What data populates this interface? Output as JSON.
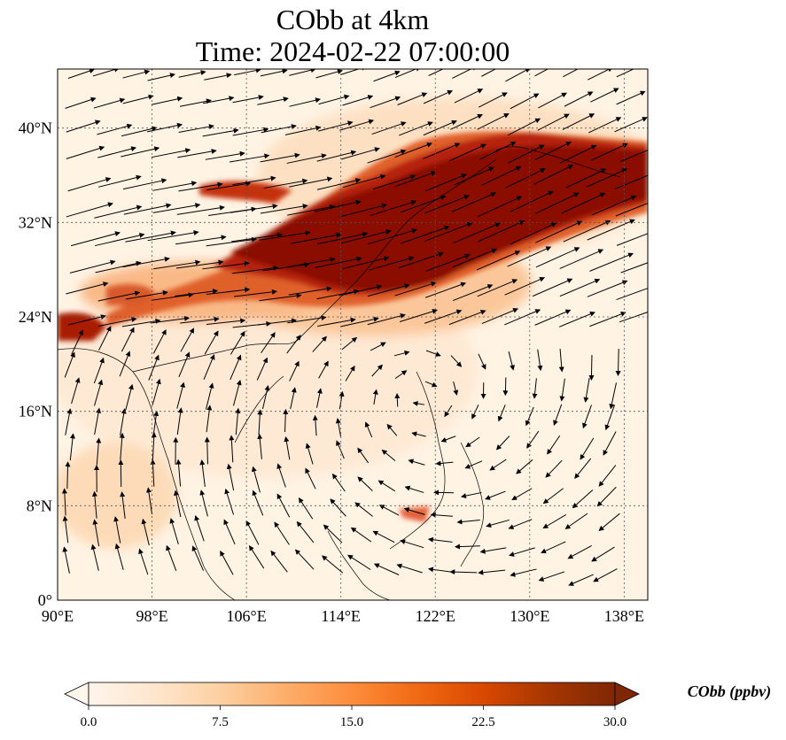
{
  "title": {
    "line1": "CObb at 4km",
    "line2": "Time: 2024-02-22 07:00:00"
  },
  "map": {
    "lon_range": [
      90,
      140
    ],
    "lat_range": [
      0,
      45
    ],
    "lon_ticks": [
      {
        "value": 90,
        "label": "90°E"
      },
      {
        "value": 98,
        "label": "98°E"
      },
      {
        "value": 106,
        "label": "106°E"
      },
      {
        "value": 114,
        "label": "114°E"
      },
      {
        "value": 122,
        "label": "122°E"
      },
      {
        "value": 130,
        "label": "130°E"
      },
      {
        "value": 138,
        "label": "138°E"
      }
    ],
    "lat_ticks": [
      {
        "value": 0,
        "label": "0°"
      },
      {
        "value": 8,
        "label": "8°N"
      },
      {
        "value": 16,
        "label": "16°N"
      },
      {
        "value": 24,
        "label": "24°N"
      },
      {
        "value": 32,
        "label": "32°N"
      },
      {
        "value": 40,
        "label": "40°N"
      }
    ],
    "gridlines": true
  },
  "colorbar": {
    "label": "CObb (ppbv)",
    "min": 0,
    "max": 30,
    "extend": "both",
    "ticks": [
      {
        "value": 0,
        "label": "0.0"
      },
      {
        "value": 7.5,
        "label": "7.5"
      },
      {
        "value": 15,
        "label": "15.0"
      },
      {
        "value": 22.5,
        "label": "22.5"
      },
      {
        "value": 30,
        "label": "30.0"
      }
    ],
    "colors": [
      "#fff5eb",
      "#fee6ce",
      "#fdd0a2",
      "#fdae6b",
      "#fd8d3c",
      "#f16913",
      "#d94801",
      "#a63603",
      "#7f2704"
    ]
  }
}
